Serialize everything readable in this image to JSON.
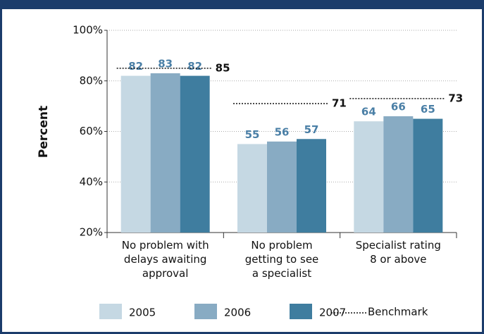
{
  "chart_data": {
    "type": "bar",
    "y_label": "Percent",
    "categories": [
      "No problem with\ndelays awaiting\napproval",
      "No problem\ngetting to see\na specialist",
      "Specialist rating\n8 or above"
    ],
    "series": [
      {
        "name": "2005",
        "color": "#c5d8e3",
        "values": [
          82,
          55,
          64
        ]
      },
      {
        "name": "2006",
        "color": "#88abc3",
        "values": [
          83,
          56,
          66
        ]
      },
      {
        "name": "2007",
        "color": "#3f7d9f",
        "values": [
          82,
          57,
          65
        ]
      }
    ],
    "benchmark": {
      "name": "Benchmark",
      "values": [
        85,
        71,
        73
      ]
    },
    "ylim": [
      20,
      100
    ],
    "yticks": [
      {
        "value": 20,
        "label": "20%"
      },
      {
        "value": 40,
        "label": "40%"
      },
      {
        "value": 60,
        "label": "60%"
      },
      {
        "value": 80,
        "label": "80%"
      },
      {
        "value": 100,
        "label": "100%"
      }
    ],
    "grid": true
  }
}
